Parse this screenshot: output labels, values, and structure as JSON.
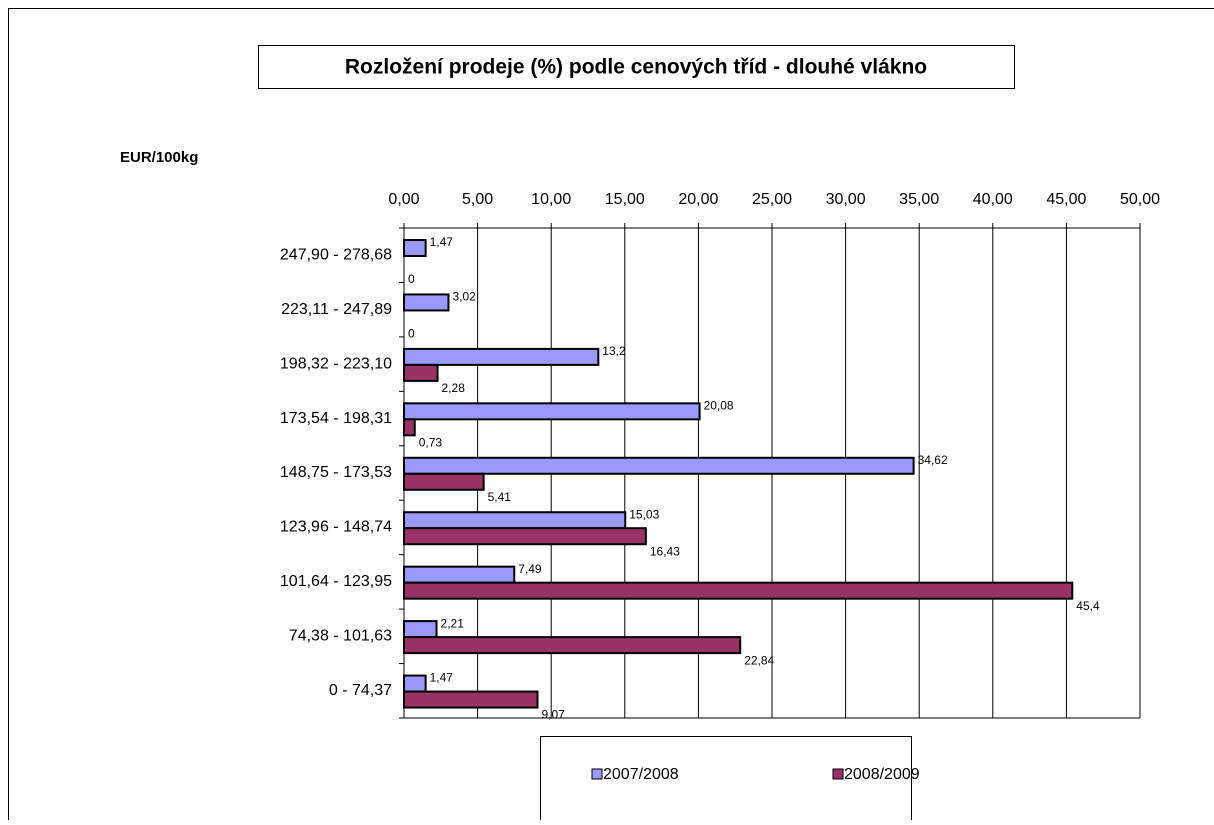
{
  "chart_data": {
    "type": "bar",
    "orientation": "horizontal",
    "title": "Rozložení prodeje (%)  podle cenových tříd - dlouhé vlákno",
    "y_axis_label": "EUR/100kg",
    "categories": [
      "247,90 - 278,68",
      "223,11 - 247,89",
      "198,32 - 223,10",
      "173,54 - 198,31",
      "148,75 - 173,53",
      "123,96 - 148,74",
      "101,64 - 123,95",
      "74,38 - 101,63",
      "0 - 74,37"
    ],
    "series": [
      {
        "name": "2007/2008",
        "color": "#9999ff",
        "values": [
          1.47,
          3.02,
          13.2,
          20.08,
          34.62,
          15.03,
          7.49,
          2.21,
          1.47
        ],
        "value_labels": [
          "1,47",
          "3,02",
          "13,2",
          "20,08",
          "34,62",
          "15,03",
          "7,49",
          "2,21",
          "1,47"
        ]
      },
      {
        "name": "2008/2009",
        "color": "#993366",
        "values": [
          0,
          0,
          2.28,
          0.73,
          5.41,
          16.43,
          45.4,
          22.84,
          9.07
        ],
        "value_labels": [
          "0",
          "0",
          "2,28",
          "0,73",
          "5,41",
          "16,43",
          "45,4",
          "22,84",
          "9,07"
        ]
      }
    ],
    "xlim": [
      0,
      50
    ],
    "xticks": [
      {
        "value": 0,
        "label": "0,00"
      },
      {
        "value": 5,
        "label": "5,00"
      },
      {
        "value": 10,
        "label": "10,00"
      },
      {
        "value": 15,
        "label": "15,00"
      },
      {
        "value": 20,
        "label": "20,00"
      },
      {
        "value": 25,
        "label": "25,00"
      },
      {
        "value": 30,
        "label": "30,00"
      },
      {
        "value": 35,
        "label": "35,00"
      },
      {
        "value": 40,
        "label": "40,00"
      },
      {
        "value": 45,
        "label": "45,00"
      },
      {
        "value": 50,
        "label": "50,00"
      }
    ],
    "grid": true,
    "legend": "bottom"
  }
}
